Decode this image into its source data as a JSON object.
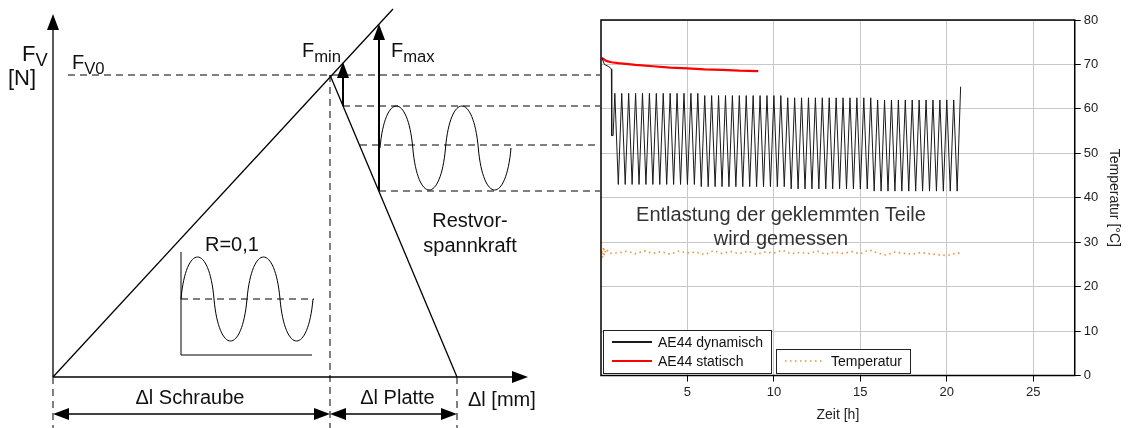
{
  "chart_data": [
    {
      "type": "other",
      "annotations": [
        "F$_{V}$",
        "[N]",
        "F$_{V0}$",
        "F$_{min}$",
        "F$_{max}$",
        "R=0,1",
        "Restvor-spannkraft",
        "Δl Schraube",
        "Δl Platte",
        "Δl [mm]"
      ]
    },
    {
      "type": "line",
      "ylabel": "Temperatur [°C]",
      "xlabel": "Zeit [h]",
      "annotations": [
        "Entlastung der geklemmten Teile wird gemessen"
      ],
      "xlim": [
        0,
        27.4
      ],
      "xticks": [
        5,
        10,
        15,
        20,
        25
      ],
      "ylim": [
        0,
        80
      ],
      "yticks": [
        0,
        10,
        20,
        30,
        40,
        50,
        60,
        70,
        80
      ],
      "grid": true,
      "legend": "bottom left",
      "marker": "none",
      "series": [
        {
          "name": "AE44 dynamisch",
          "color": "#1a1a1a",
          "line_style": "solid",
          "x": [
            0.05,
            0.2,
            0.45,
            0.6,
            0.62,
            0.7,
            0.8,
            1,
            1.2,
            1.4,
            1.6,
            1.8,
            2,
            2.2,
            2.4,
            2.6,
            2.8,
            3,
            3.2,
            3.4,
            3.6,
            3.8,
            4,
            4.2,
            4.4,
            4.6,
            4.8,
            5,
            5.2,
            5.4,
            5.6,
            5.8,
            6,
            6.2,
            6.4,
            6.6,
            6.8,
            7,
            7.2,
            7.4,
            7.6,
            7.8,
            8,
            8.2,
            8.4,
            8.6,
            8.8,
            9,
            9.2,
            9.4,
            9.6,
            9.8,
            10,
            10.2,
            10.4,
            10.6,
            10.8,
            11,
            11.2,
            11.4,
            11.6,
            11.8,
            12,
            12.2,
            12.4,
            12.6,
            12.8,
            13,
            13.2,
            13.4,
            13.6,
            13.8,
            14,
            14.2,
            14.4,
            14.6,
            14.8,
            15,
            15.2,
            15.4,
            15.6,
            15.8,
            16,
            16.2,
            16.4,
            16.6,
            16.8,
            17,
            17.2,
            17.4,
            17.6,
            17.8,
            18,
            18.2,
            18.4,
            18.6,
            18.8,
            19,
            19.2,
            19.4,
            19.6,
            19.8,
            20,
            20.2,
            20.4,
            20.6,
            20.8
          ],
          "values": [
            71.5,
            70,
            69.5,
            69,
            54,
            54,
            63.5,
            43,
            63.5,
            43,
            63.5,
            43,
            63.5,
            43,
            63.5,
            43,
            63.5,
            43,
            63.5,
            43,
            63.5,
            43,
            63.5,
            43,
            63.5,
            43,
            63.5,
            43,
            63.5,
            43,
            63.5,
            42.5,
            63,
            42.5,
            63,
            42.5,
            63,
            42.5,
            63,
            42.5,
            63,
            42.5,
            63,
            42.5,
            63,
            42.5,
            63,
            42.5,
            63,
            42.5,
            63,
            42.5,
            63,
            42.5,
            63,
            42.5,
            62.5,
            42,
            62.5,
            42,
            62.5,
            42,
            62.5,
            42,
            62.5,
            42,
            62.5,
            42,
            62.5,
            42,
            62.5,
            42,
            62.5,
            42,
            62.5,
            42,
            62.5,
            42,
            62.5,
            42,
            62.5,
            41.5,
            62,
            41.5,
            62,
            41.5,
            62,
            41.5,
            62,
            41.5,
            62,
            41.5,
            62,
            41.5,
            62,
            41.5,
            62,
            41.5,
            62,
            41.5,
            62,
            41.5,
            62,
            41.5,
            62,
            41.5,
            65
          ]
        },
        {
          "name": "AE44 statisch",
          "color": "#ff0000",
          "line_style": "solid",
          "x": [
            0.05,
            0.3,
            0.6,
            1,
            2,
            3,
            4,
            5,
            6,
            7,
            8,
            9.1
          ],
          "values": [
            71.5,
            70.8,
            70.5,
            70.3,
            69.9,
            69.6,
            69.3,
            69.1,
            68.9,
            68.8,
            68.6,
            68.5
          ]
        },
        {
          "name": "Temperatur",
          "color": "#f0902c",
          "line_style": "dotted",
          "x": [
            0.05,
            0.1,
            0.15,
            0.2,
            0.3,
            0.5,
            1,
            1.5,
            2,
            2.5,
            3,
            3.5,
            4,
            4.5,
            5,
            5.5,
            6,
            6.5,
            7,
            7.5,
            8,
            8.5,
            9,
            9.5,
            10,
            10.5,
            11,
            11.5,
            12,
            12.5,
            13,
            13.5,
            14,
            14.5,
            15,
            15.5,
            16,
            16.5,
            17,
            17.5,
            18,
            18.5,
            19,
            19.5,
            20,
            20.5,
            20.8
          ],
          "values": [
            28,
            26.5,
            29,
            27,
            28.5,
            27.5,
            27.6,
            28,
            27.4,
            28.1,
            27.5,
            27.9,
            27.3,
            28,
            27.6,
            27.8,
            27.2,
            28.1,
            27.5,
            27.9,
            27.4,
            28,
            27.3,
            27.8,
            27.6,
            28.2,
            27.4,
            27.7,
            27.5,
            28,
            27.3,
            27.8,
            27.5,
            27.9,
            27.4,
            28.3,
            27.6,
            27.1,
            27.8,
            27.5,
            27.3,
            27.7,
            27.4,
            27.2,
            27,
            27.5,
            27.6
          ]
        }
      ]
    }
  ]
}
